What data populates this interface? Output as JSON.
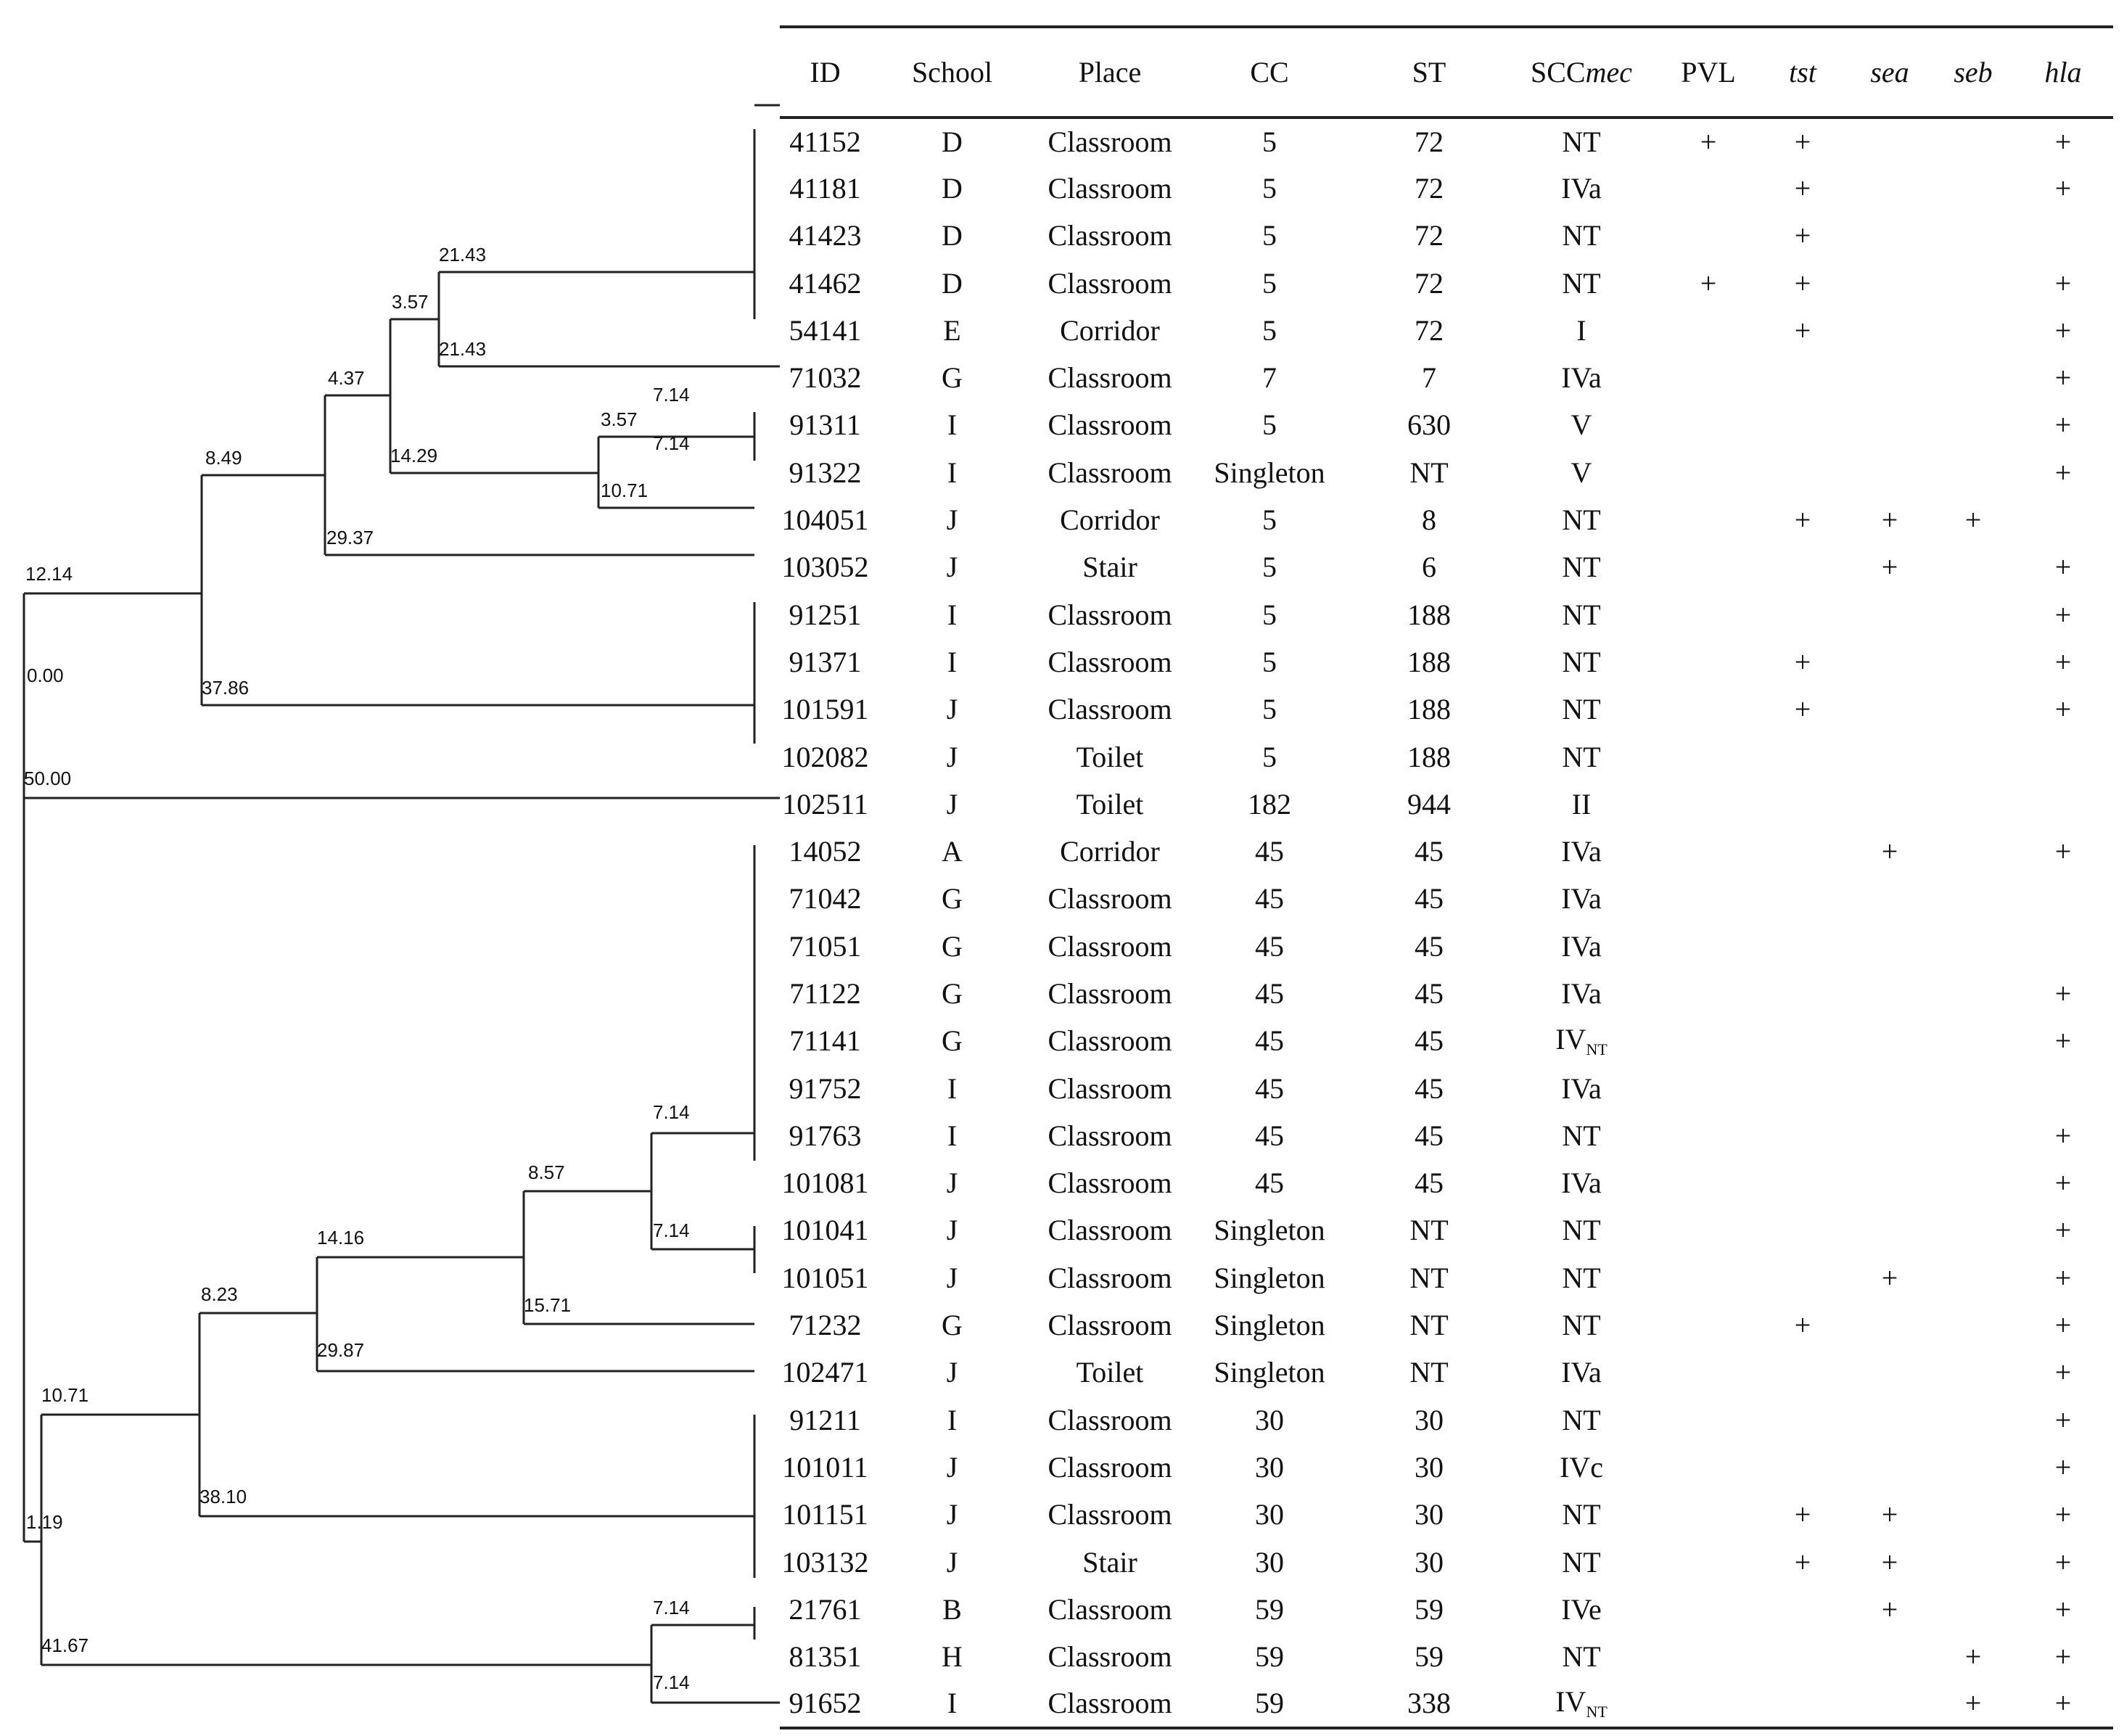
{
  "table": {
    "headers": {
      "id": "ID",
      "school": "School",
      "place": "Place",
      "cc": "CC",
      "st": "ST",
      "sccmec_prefix": "SCC",
      "sccmec_italic": "mec",
      "pvl": "PVL",
      "tst": "tst",
      "sea": "sea",
      "seb": "seb",
      "hla": "hla"
    },
    "rows": [
      {
        "id": "41152",
        "school": "D",
        "place": "Classroom",
        "cc": "5",
        "st": "72",
        "scc": "NT",
        "scc_sub": "",
        "pvl": "+",
        "tst": "+",
        "sea": "",
        "seb": "",
        "hla": "+"
      },
      {
        "id": "41181",
        "school": "D",
        "place": "Classroom",
        "cc": "5",
        "st": "72",
        "scc": "IVa",
        "scc_sub": "",
        "pvl": "",
        "tst": "+",
        "sea": "",
        "seb": "",
        "hla": "+"
      },
      {
        "id": "41423",
        "school": "D",
        "place": "Classroom",
        "cc": "5",
        "st": "72",
        "scc": "NT",
        "scc_sub": "",
        "pvl": "",
        "tst": "+",
        "sea": "",
        "seb": "",
        "hla": ""
      },
      {
        "id": "41462",
        "school": "D",
        "place": "Classroom",
        "cc": "5",
        "st": "72",
        "scc": "NT",
        "scc_sub": "",
        "pvl": "+",
        "tst": "+",
        "sea": "",
        "seb": "",
        "hla": "+"
      },
      {
        "id": "54141",
        "school": "E",
        "place": "Corridor",
        "cc": "5",
        "st": "72",
        "scc": "I",
        "scc_sub": "",
        "pvl": "",
        "tst": "+",
        "sea": "",
        "seb": "",
        "hla": "+"
      },
      {
        "id": "71032",
        "school": "G",
        "place": "Classroom",
        "cc": "7",
        "st": "7",
        "scc": "IVa",
        "scc_sub": "",
        "pvl": "",
        "tst": "",
        "sea": "",
        "seb": "",
        "hla": "+"
      },
      {
        "id": "91311",
        "school": "I",
        "place": "Classroom",
        "cc": "5",
        "st": "630",
        "scc": "V",
        "scc_sub": "",
        "pvl": "",
        "tst": "",
        "sea": "",
        "seb": "",
        "hla": "+"
      },
      {
        "id": "91322",
        "school": "I",
        "place": "Classroom",
        "cc": "Singleton",
        "st": "NT",
        "scc": "V",
        "scc_sub": "",
        "pvl": "",
        "tst": "",
        "sea": "",
        "seb": "",
        "hla": "+"
      },
      {
        "id": "104051",
        "school": "J",
        "place": "Corridor",
        "cc": "5",
        "st": "8",
        "scc": "NT",
        "scc_sub": "",
        "pvl": "",
        "tst": "+",
        "sea": "+",
        "seb": "+",
        "hla": ""
      },
      {
        "id": "103052",
        "school": "J",
        "place": "Stair",
        "cc": "5",
        "st": "6",
        "scc": "NT",
        "scc_sub": "",
        "pvl": "",
        "tst": "",
        "sea": "+",
        "seb": "",
        "hla": "+"
      },
      {
        "id": "91251",
        "school": "I",
        "place": "Classroom",
        "cc": "5",
        "st": "188",
        "scc": "NT",
        "scc_sub": "",
        "pvl": "",
        "tst": "",
        "sea": "",
        "seb": "",
        "hla": "+"
      },
      {
        "id": "91371",
        "school": "I",
        "place": "Classroom",
        "cc": "5",
        "st": "188",
        "scc": "NT",
        "scc_sub": "",
        "pvl": "",
        "tst": "+",
        "sea": "",
        "seb": "",
        "hla": "+"
      },
      {
        "id": "101591",
        "school": "J",
        "place": "Classroom",
        "cc": "5",
        "st": "188",
        "scc": "NT",
        "scc_sub": "",
        "pvl": "",
        "tst": "+",
        "sea": "",
        "seb": "",
        "hla": "+"
      },
      {
        "id": "102082",
        "school": "J",
        "place": "Toilet",
        "cc": "5",
        "st": "188",
        "scc": "NT",
        "scc_sub": "",
        "pvl": "",
        "tst": "",
        "sea": "",
        "seb": "",
        "hla": ""
      },
      {
        "id": "102511",
        "school": "J",
        "place": "Toilet",
        "cc": "182",
        "st": "944",
        "scc": "II",
        "scc_sub": "",
        "pvl": "",
        "tst": "",
        "sea": "",
        "seb": "",
        "hla": ""
      },
      {
        "id": "14052",
        "school": "A",
        "place": "Corridor",
        "cc": "45",
        "st": "45",
        "scc": "IVa",
        "scc_sub": "",
        "pvl": "",
        "tst": "",
        "sea": "+",
        "seb": "",
        "hla": "+"
      },
      {
        "id": "71042",
        "school": "G",
        "place": "Classroom",
        "cc": "45",
        "st": "45",
        "scc": "IVa",
        "scc_sub": "",
        "pvl": "",
        "tst": "",
        "sea": "",
        "seb": "",
        "hla": ""
      },
      {
        "id": "71051",
        "school": "G",
        "place": "Classroom",
        "cc": "45",
        "st": "45",
        "scc": "IVa",
        "scc_sub": "",
        "pvl": "",
        "tst": "",
        "sea": "",
        "seb": "",
        "hla": ""
      },
      {
        "id": "71122",
        "school": "G",
        "place": "Classroom",
        "cc": "45",
        "st": "45",
        "scc": "IVa",
        "scc_sub": "",
        "pvl": "",
        "tst": "",
        "sea": "",
        "seb": "",
        "hla": "+"
      },
      {
        "id": "71141",
        "school": "G",
        "place": "Classroom",
        "cc": "45",
        "st": "45",
        "scc": "IV",
        "scc_sub": "NT",
        "pvl": "",
        "tst": "",
        "sea": "",
        "seb": "",
        "hla": "+"
      },
      {
        "id": "91752",
        "school": "I",
        "place": "Classroom",
        "cc": "45",
        "st": "45",
        "scc": "IVa",
        "scc_sub": "",
        "pvl": "",
        "tst": "",
        "sea": "",
        "seb": "",
        "hla": ""
      },
      {
        "id": "91763",
        "school": "I",
        "place": "Classroom",
        "cc": "45",
        "st": "45",
        "scc": "NT",
        "scc_sub": "",
        "pvl": "",
        "tst": "",
        "sea": "",
        "seb": "",
        "hla": "+"
      },
      {
        "id": "101081",
        "school": "J",
        "place": "Classroom",
        "cc": "45",
        "st": "45",
        "scc": "IVa",
        "scc_sub": "",
        "pvl": "",
        "tst": "",
        "sea": "",
        "seb": "",
        "hla": "+"
      },
      {
        "id": "101041",
        "school": "J",
        "place": "Classroom",
        "cc": "Singleton",
        "st": "NT",
        "scc": "NT",
        "scc_sub": "",
        "pvl": "",
        "tst": "",
        "sea": "",
        "seb": "",
        "hla": "+"
      },
      {
        "id": "101051",
        "school": "J",
        "place": "Classroom",
        "cc": "Singleton",
        "st": "NT",
        "scc": "NT",
        "scc_sub": "",
        "pvl": "",
        "tst": "",
        "sea": "+",
        "seb": "",
        "hla": "+"
      },
      {
        "id": "71232",
        "school": "G",
        "place": "Classroom",
        "cc": "Singleton",
        "st": "NT",
        "scc": "NT",
        "scc_sub": "",
        "pvl": "",
        "tst": "+",
        "sea": "",
        "seb": "",
        "hla": "+"
      },
      {
        "id": "102471",
        "school": "J",
        "place": "Toilet",
        "cc": "Singleton",
        "st": "NT",
        "scc": "IVa",
        "scc_sub": "",
        "pvl": "",
        "tst": "",
        "sea": "",
        "seb": "",
        "hla": "+"
      },
      {
        "id": "91211",
        "school": "I",
        "place": "Classroom",
        "cc": "30",
        "st": "30",
        "scc": "NT",
        "scc_sub": "",
        "pvl": "",
        "tst": "",
        "sea": "",
        "seb": "",
        "hla": "+"
      },
      {
        "id": "101011",
        "school": "J",
        "place": "Classroom",
        "cc": "30",
        "st": "30",
        "scc": "IVc",
        "scc_sub": "",
        "pvl": "",
        "tst": "",
        "sea": "",
        "seb": "",
        "hla": "+"
      },
      {
        "id": "101151",
        "school": "J",
        "place": "Classroom",
        "cc": "30",
        "st": "30",
        "scc": "NT",
        "scc_sub": "",
        "pvl": "",
        "tst": "+",
        "sea": "+",
        "seb": "",
        "hla": "+"
      },
      {
        "id": "103132",
        "school": "J",
        "place": "Stair",
        "cc": "30",
        "st": "30",
        "scc": "NT",
        "scc_sub": "",
        "pvl": "",
        "tst": "+",
        "sea": "+",
        "seb": "",
        "hla": "+"
      },
      {
        "id": "21761",
        "school": "B",
        "place": "Classroom",
        "cc": "59",
        "st": "59",
        "scc": "IVe",
        "scc_sub": "",
        "pvl": "",
        "tst": "",
        "sea": "+",
        "seb": "",
        "hla": "+"
      },
      {
        "id": "81351",
        "school": "H",
        "place": "Classroom",
        "cc": "59",
        "st": "59",
        "scc": "NT",
        "scc_sub": "",
        "pvl": "",
        "tst": "",
        "sea": "",
        "seb": "+",
        "hla": "+"
      },
      {
        "id": "91652",
        "school": "I",
        "place": "Classroom",
        "cc": "59",
        "st": "338",
        "scc": "IV",
        "scc_sub": "NT",
        "pvl": "",
        "tst": "",
        "sea": "",
        "seb": "+",
        "hla": "+"
      }
    ]
  },
  "tree": {
    "labels": [
      "21.43",
      "3.57",
      "21.43",
      "4.37",
      "7.14",
      "3.57",
      "7.14",
      "14.29",
      "10.71",
      "8.49",
      "29.37",
      "12.14",
      "0.00",
      "37.86",
      "50.00",
      "7.14",
      "8.57",
      "7.14",
      "14.16",
      "15.71",
      "8.23",
      "29.87",
      "10.71",
      "38.10",
      "1.19",
      "7.14",
      "41.67",
      "7.14"
    ]
  }
}
